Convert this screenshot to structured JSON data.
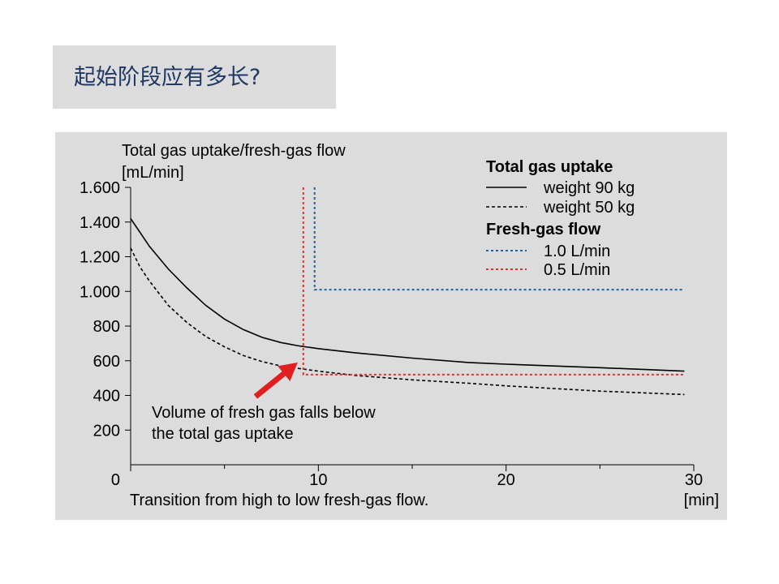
{
  "slide": {
    "title": "起始阶段应有多长?"
  },
  "chart_data": {
    "type": "line",
    "ylabel_line1": "Total gas uptake/fresh-gas flow",
    "ylabel_line2": "[mL/min]",
    "xlabel": "Transition from high to low fresh-gas flow.",
    "xunit": "[min]",
    "xlim": [
      0,
      30
    ],
    "ylim": [
      0,
      1600
    ],
    "x_ticks": [
      {
        "value": 0,
        "label": "0"
      },
      {
        "value": 10,
        "label": "10"
      },
      {
        "value": 20,
        "label": "20"
      },
      {
        "value": 30,
        "label": "30"
      }
    ],
    "y_ticks": [
      {
        "value": 200,
        "label": "200"
      },
      {
        "value": 400,
        "label": "400"
      },
      {
        "value": 600,
        "label": "600"
      },
      {
        "value": 800,
        "label": "800"
      },
      {
        "value": 1000,
        "label": "1.000"
      },
      {
        "value": 1200,
        "label": "1.200"
      },
      {
        "value": 1400,
        "label": "1.400"
      },
      {
        "value": 1600,
        "label": "1.600"
      }
    ],
    "legend": {
      "group1_title": "Total gas uptake",
      "group2_title": "Fresh-gas flow",
      "placement": "top-right"
    },
    "series": [
      {
        "name": "weight 90 kg",
        "group": "uptake",
        "color": "#000000",
        "dash": "solid",
        "x": [
          0,
          0.5,
          1,
          2,
          3,
          4,
          5,
          6,
          7,
          8,
          9,
          10,
          12,
          15,
          18,
          20,
          25,
          29.5
        ],
        "y": [
          1420,
          1340,
          1260,
          1130,
          1020,
          920,
          840,
          780,
          735,
          705,
          685,
          670,
          645,
          615,
          590,
          580,
          560,
          540
        ]
      },
      {
        "name": "weight 50 kg",
        "group": "uptake",
        "color": "#000000",
        "dash": "dashed",
        "x": [
          0,
          0.5,
          1,
          2,
          3,
          4,
          5,
          6,
          7,
          8,
          9,
          10,
          12,
          15,
          18,
          20,
          25,
          29.5
        ],
        "y": [
          1250,
          1140,
          1060,
          920,
          820,
          740,
          680,
          630,
          595,
          570,
          555,
          540,
          515,
          490,
          470,
          455,
          425,
          405
        ]
      },
      {
        "name": "1.0 L/min",
        "group": "fresh",
        "color": "#1f5fa8",
        "dash": "dotted",
        "x": [
          9.8,
          9.8,
          29.5
        ],
        "y": [
          1600,
          1010,
          1010
        ]
      },
      {
        "name": "0.5 L/min",
        "group": "fresh",
        "color": "#e03030",
        "dash": "dotted",
        "x": [
          9.2,
          9.2,
          29.5
        ],
        "y": [
          1600,
          520,
          520
        ]
      }
    ],
    "annotation": {
      "line1": "Volume of fresh gas falls below",
      "line2": "the total gas uptake",
      "arrow_color": "#e02020",
      "target": {
        "x": 8.9,
        "y": 590
      }
    },
    "grid": false
  }
}
